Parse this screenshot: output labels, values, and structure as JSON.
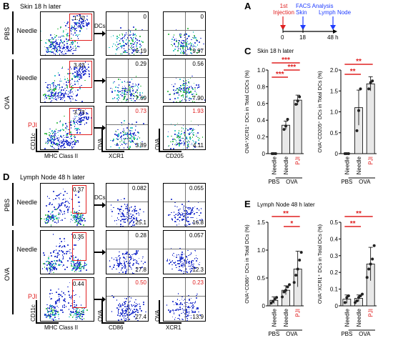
{
  "colors": {
    "accent_red": "#e02020",
    "accent_blue": "#1f3cff",
    "dot_blue": "#2233cc"
  },
  "panelB": {
    "letter": "B",
    "title": "Skin 18 h later",
    "groups": {
      "pbs": "PBS",
      "ova": "OVA"
    },
    "rows": [
      {
        "label": "Needle",
        "label_red": false,
        "gate": "1.70",
        "xcr1": {
          "tr": "0",
          "br": "6.19",
          "red": false
        },
        "cd205": {
          "tr": "0",
          "br": "9.97",
          "red": false
        }
      },
      {
        "label": "Needle",
        "label_red": false,
        "gate": "3.43",
        "xcr1": {
          "tr": "0.29",
          "br": "7.69",
          "red": false
        },
        "cd205": {
          "tr": "0.56",
          "br": "7.90",
          "red": false
        }
      },
      {
        "label": "PJI",
        "label_red": true,
        "gate": "3.73",
        "xcr1": {
          "tr": "0.73",
          "br": "3.89",
          "red": true
        },
        "cd205": {
          "tr": "1.93",
          "br": "4.11",
          "red": true
        }
      }
    ],
    "arrow_label": "DCs",
    "axes": {
      "y1": "CD11c",
      "x1": "MHC Class II",
      "y2": "OVA",
      "x2": "XCR1",
      "y3": "OVA",
      "x3": "CD205"
    }
  },
  "panelD": {
    "letter": "D",
    "title": "Lymph  Node 48 h later",
    "groups": {
      "pbs": "PBS",
      "ova": "OVA"
    },
    "rows": [
      {
        "label": "Needle",
        "label_red": false,
        "gate": "0.37",
        "cd86": {
          "tr": "0.082",
          "br": "25.1",
          "red": false
        },
        "xcr1": {
          "tr": "0.055",
          "br": "16.8",
          "red": false
        }
      },
      {
        "label": "Needle",
        "label_red": false,
        "gate": "0.35",
        "cd86": {
          "tr": "0.28",
          "br": "27.8",
          "red": false
        },
        "xcr1": {
          "tr": "0.057",
          "br": "12.3",
          "red": false
        }
      },
      {
        "label": "PJI",
        "label_red": true,
        "gate": "0.44",
        "cd86": {
          "tr": "0.50",
          "br": "27.4",
          "red": true
        },
        "xcr1": {
          "tr": "0.23",
          "br": "13.9",
          "red": true
        }
      }
    ],
    "arrow_label": "DCs",
    "axes": {
      "y1": "CD11c",
      "x1": "MHC Class II",
      "y2": "OVA",
      "x2": "CD86",
      "y3": "OVA",
      "x3": "XCR1"
    }
  },
  "panelA": {
    "letter": "A",
    "injection": "1st\nInjection",
    "facs": "FACS Analysis",
    "skin": "Skin",
    "lymph": "Lymph Node",
    "ticks": [
      "0",
      "18",
      "48 h"
    ]
  },
  "panelC": {
    "letter": "C",
    "title": "Skin 18 h later"
  },
  "panelE": {
    "letter": "E",
    "title": "Lymph  Node 48 h later"
  },
  "chart_data": [
    {
      "type": "bar",
      "panel": "C-left",
      "ylabel": "OVA⁺XCR1⁺ DCs in Total CDCs (%)",
      "ylim": [
        0,
        1.0
      ],
      "yticks": [
        "0",
        "0.2",
        "0.4",
        "0.6",
        "0.8",
        "1.0"
      ],
      "categories": [
        "Needle",
        "Needle",
        "PJI"
      ],
      "groups": [
        "PBS",
        "OVA"
      ],
      "values": [
        0,
        0.34,
        0.64
      ],
      "errors": [
        0,
        0.05,
        0.06
      ],
      "points": [
        [
          0,
          0,
          0
        ],
        [
          0.29,
          0.33,
          0.41
        ],
        [
          0.59,
          0.63,
          0.68
        ]
      ],
      "sig": [
        "***",
        "***",
        "***"
      ]
    },
    {
      "type": "bar",
      "panel": "C-right",
      "ylabel": "OVA⁺CD205⁺ DCs in Total DCs (%)",
      "ylim": [
        0,
        2.0
      ],
      "yticks": [
        "0",
        "0.5",
        "1.0",
        "1.5",
        "2.0"
      ],
      "categories": [
        "Needle",
        "Needle",
        "PJI"
      ],
      "groups": [
        "PBS",
        "OVA"
      ],
      "values": [
        0,
        1.1,
        1.67
      ],
      "errors": [
        0,
        0.42,
        0.17
      ],
      "points": [
        [
          0,
          0,
          0
        ],
        [
          0.55,
          1.03,
          1.55
        ],
        [
          1.55,
          1.7,
          1.74
        ]
      ],
      "sig": [
        "**",
        "**"
      ]
    },
    {
      "type": "bar",
      "panel": "E-left",
      "ylabel": "OVA⁺CD86⁺ DCs in Total DCs (%)",
      "ylim": [
        0,
        1.5
      ],
      "yticks": [
        "0",
        "0.5",
        "1.0",
        "1.5"
      ],
      "categories": [
        "Needle",
        "Needle",
        "PJI"
      ],
      "groups": [
        "PBS",
        "OVA"
      ],
      "values": [
        0.1,
        0.28,
        0.66
      ],
      "errors": [
        0.06,
        0.08,
        0.32
      ],
      "points": [
        [
          0.05,
          0.08,
          0.12,
          0.15
        ],
        [
          0.16,
          0.25,
          0.28,
          0.34,
          0.38
        ],
        [
          0.42,
          0.55,
          0.66,
          0.82,
          0.96
        ]
      ],
      "sig": [
        "**",
        "*"
      ]
    },
    {
      "type": "bar",
      "panel": "E-right",
      "ylabel": "OVA⁺XCR1⁺ DCs in Total DCs (%)",
      "ylim": [
        0,
        0.5
      ],
      "yticks": [
        "0",
        "0.1",
        "0.2",
        "0.3",
        "0.4",
        "0.5"
      ],
      "categories": [
        "Needle",
        "Needle",
        "PJI"
      ],
      "groups": [
        "PBS",
        "OVA"
      ],
      "values": [
        0.04,
        0.045,
        0.25
      ],
      "errors": [
        0.025,
        0.02,
        0.1
      ],
      "points": [
        [
          0.02,
          0.05,
          0.06
        ],
        [
          0.02,
          0.03,
          0.05,
          0.06,
          0.07
        ],
        [
          0.17,
          0.22,
          0.25,
          0.28,
          0.36
        ]
      ],
      "sig": [
        "**",
        "**"
      ]
    }
  ]
}
